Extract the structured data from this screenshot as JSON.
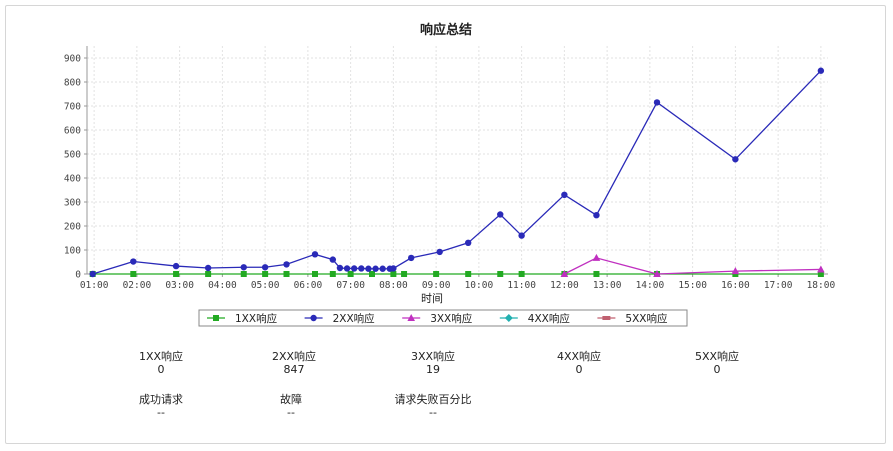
{
  "chart_data": {
    "type": "line",
    "title": "响应总结",
    "xlabel": "时间",
    "ylabel": "",
    "ylim": [
      0,
      950
    ],
    "yticks": [
      0,
      100,
      200,
      300,
      400,
      500,
      600,
      700,
      800,
      900
    ],
    "xlim": [
      "00:50",
      "18:10"
    ],
    "xticks": [
      "01:00",
      "02:00",
      "03:00",
      "04:00",
      "05:00",
      "06:00",
      "07:00",
      "08:00",
      "09:00",
      "10:00",
      "11:00",
      "12:00",
      "13:00",
      "14:00",
      "15:00",
      "16:00",
      "17:00",
      "18:00"
    ],
    "grid": true,
    "legend_position": "bottom",
    "series": [
      {
        "name": "1XX响应",
        "color": "#22aa22",
        "marker": "square",
        "points": [
          [
            "00:58",
            0
          ],
          [
            "01:55",
            0
          ],
          [
            "02:55",
            0
          ],
          [
            "03:40",
            0
          ],
          [
            "04:30",
            0
          ],
          [
            "05:00",
            0
          ],
          [
            "05:30",
            0
          ],
          [
            "06:10",
            0
          ],
          [
            "06:35",
            0
          ],
          [
            "07:00",
            0
          ],
          [
            "07:30",
            0
          ],
          [
            "08:00",
            0
          ],
          [
            "08:15",
            0
          ],
          [
            "09:00",
            0
          ],
          [
            "09:45",
            0
          ],
          [
            "10:30",
            0
          ],
          [
            "11:00",
            0
          ],
          [
            "12:00",
            0
          ],
          [
            "12:45",
            0
          ],
          [
            "14:10",
            0
          ],
          [
            "16:00",
            0
          ],
          [
            "18:00",
            0
          ]
        ]
      },
      {
        "name": "2XX响应",
        "color": "#2a2ab8",
        "marker": "circle",
        "points": [
          [
            "00:58",
            0
          ],
          [
            "01:55",
            52
          ],
          [
            "02:55",
            33
          ],
          [
            "03:40",
            25
          ],
          [
            "04:30",
            28
          ],
          [
            "05:00",
            28
          ],
          [
            "05:30",
            40
          ],
          [
            "06:10",
            82
          ],
          [
            "06:35",
            60
          ],
          [
            "06:45",
            25
          ],
          [
            "06:55",
            23
          ],
          [
            "07:05",
            23
          ],
          [
            "07:15",
            23
          ],
          [
            "07:25",
            22
          ],
          [
            "07:35",
            22
          ],
          [
            "07:45",
            22
          ],
          [
            "07:55",
            22
          ],
          [
            "08:00",
            23
          ],
          [
            "08:25",
            67
          ],
          [
            "09:05",
            92
          ],
          [
            "09:45",
            130
          ],
          [
            "10:30",
            248
          ],
          [
            "11:00",
            160
          ],
          [
            "12:00",
            330
          ],
          [
            "12:45",
            245
          ],
          [
            "14:10",
            715
          ],
          [
            "16:00",
            478
          ],
          [
            "18:00",
            847
          ]
        ]
      },
      {
        "name": "3XX响应",
        "color": "#c030c0",
        "marker": "triangle",
        "points": [
          [
            "12:00",
            0
          ],
          [
            "12:45",
            67
          ],
          [
            "14:10",
            0
          ],
          [
            "16:00",
            12
          ],
          [
            "18:00",
            19
          ]
        ]
      },
      {
        "name": "4XX响应",
        "color": "#22b0b0",
        "marker": "diamond",
        "points": []
      },
      {
        "name": "5XX响应",
        "color": "#c06070",
        "marker": "rect",
        "points": []
      }
    ]
  },
  "stats": {
    "r1xx": {
      "label": "1XX响应",
      "value": "0"
    },
    "r2xx": {
      "label": "2XX响应",
      "value": "847"
    },
    "r3xx": {
      "label": "3XX响应",
      "value": "19"
    },
    "r4xx": {
      "label": "4XX响应",
      "value": "0"
    },
    "r5xx": {
      "label": "5XX响应",
      "value": "0"
    },
    "success": {
      "label": "成功请求",
      "value": "--"
    },
    "fault": {
      "label": "故障",
      "value": "--"
    },
    "fail_pct": {
      "label": "请求失败百分比",
      "value": "--"
    }
  }
}
